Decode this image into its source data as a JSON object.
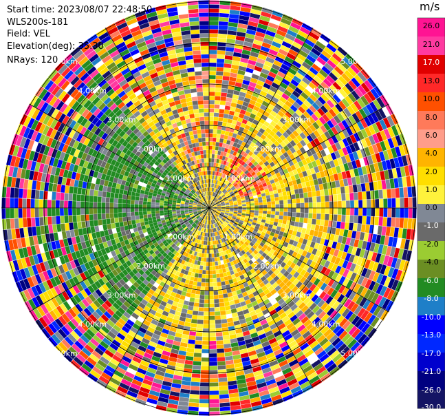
{
  "header": {
    "start_time": "Start time: 2023/08/07 22:48:50",
    "site": "WLS200s-181",
    "field": "Field: VEL",
    "elevation": "Elevation(deg): 35.30",
    "nrays": "NRays: 120"
  },
  "chart_data": {
    "type": "heatmap",
    "projection": "polar-ppi",
    "field": "VEL",
    "nrays": 120,
    "elevation_deg": 35.3,
    "range_rings_km": [
      1.0,
      2.0,
      3.0,
      4.0,
      5.0
    ],
    "ring_labels": [
      "1.00km",
      "2.00km",
      "3.00km",
      "4.00km",
      "5.00km"
    ],
    "colorbar": {
      "unit": "m/s",
      "ticks": [
        "26.0",
        "21.0",
        "17.0",
        "13.0",
        "10.0",
        "8.0",
        "6.0",
        "4.0",
        "2.0",
        "1.0",
        "0.0",
        "-1.0",
        "-2.0",
        "-4.0",
        "-6.0",
        "-8.0",
        "-10.0",
        "-13.0",
        "-17.0",
        "-21.0",
        "-26.0",
        "-30.0"
      ],
      "colors": [
        "#ff1493",
        "#ff3aa0",
        "#e00000",
        "#ff2828",
        "#ff5000",
        "#ff7a5a",
        "#ff9d8a",
        "#ffb400",
        "#ffde00",
        "#fff23c",
        "#808895",
        "#6a6a6a",
        "#9bcc32",
        "#6b8e23",
        "#228b22",
        "#1e7fc8",
        "#0000ff",
        "#0028ff",
        "#0000cd",
        "#000080",
        "#141464"
      ]
    }
  }
}
